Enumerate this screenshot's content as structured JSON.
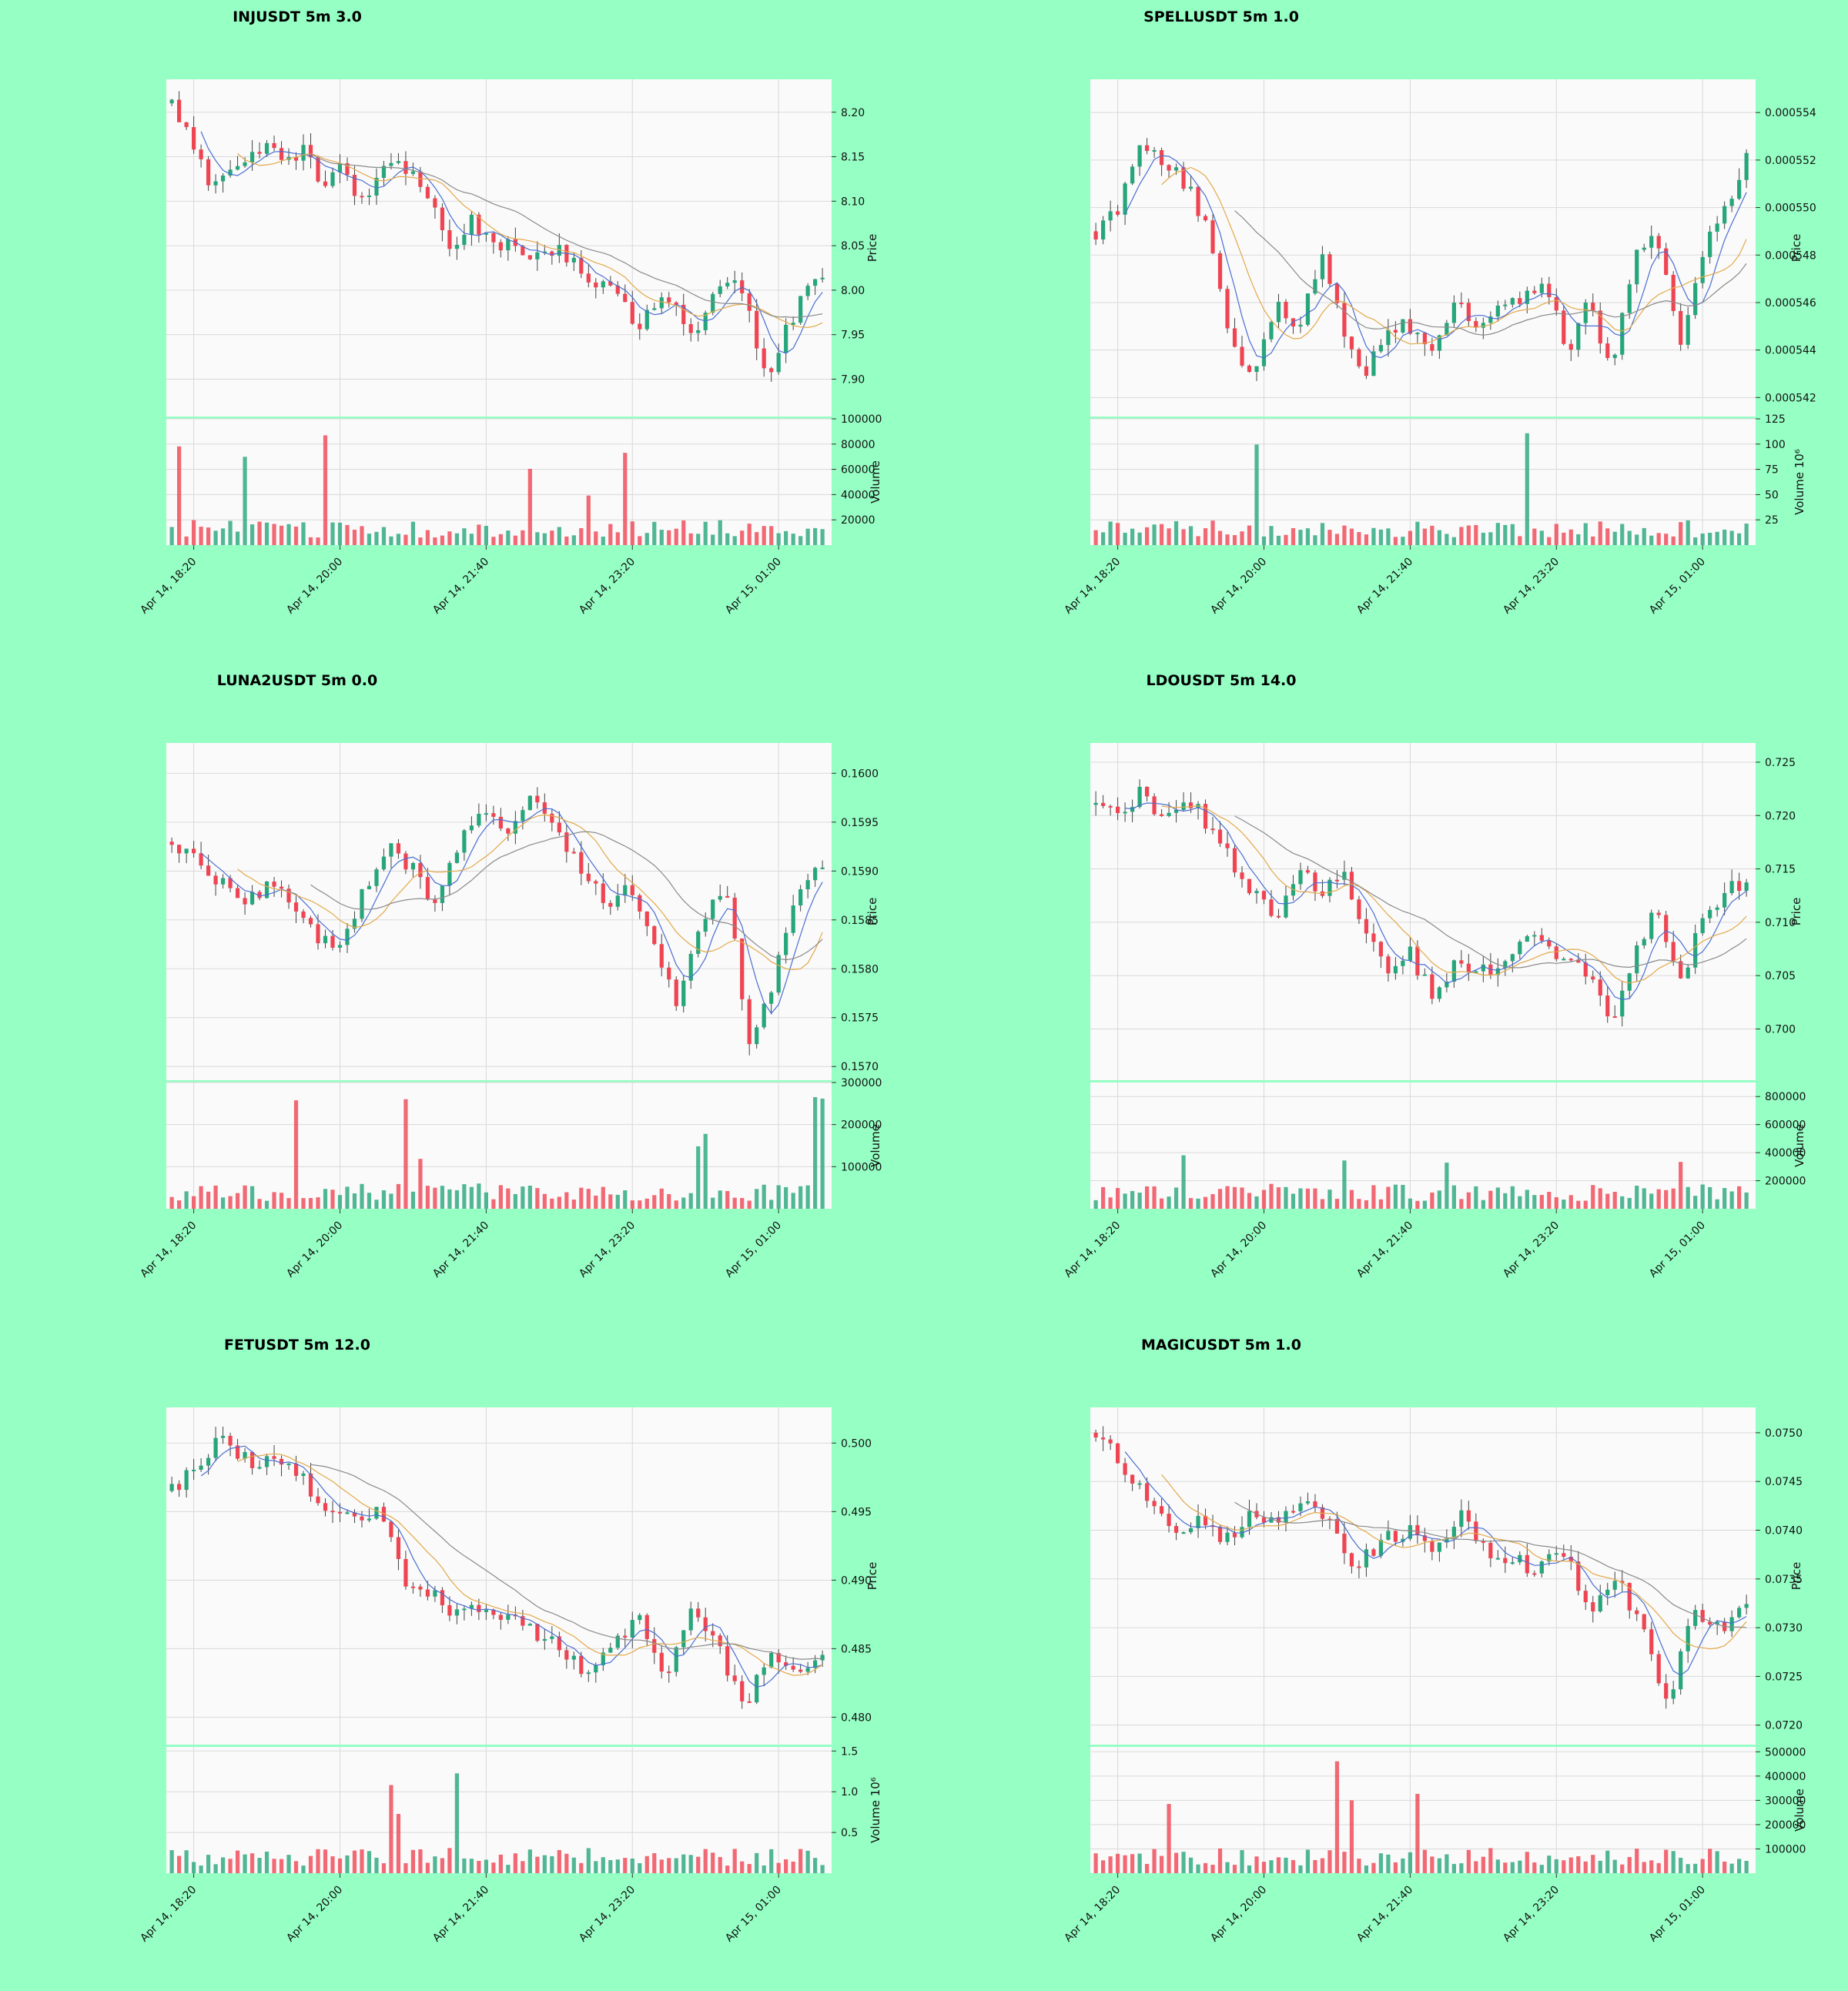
{
  "page": {
    "background": "#95ffc4",
    "panel_background": "#fafafa",
    "up_color": "#26a67a",
    "down_color": "#ef4553"
  },
  "chart_data": [
    {
      "type": "candlestick",
      "title": "INJUSDT 5m 3.0",
      "ylabel": "Price",
      "volume_label": "Volume",
      "ylim": [
        7.858,
        8.237
      ],
      "yticks": [
        8.2,
        8.15,
        8.1,
        8.05,
        8.0,
        7.95,
        7.9
      ],
      "decimals": 2,
      "volume_ylim": [
        0,
        100000
      ],
      "volume_ticks": [
        100000,
        80000,
        60000,
        40000,
        20000
      ],
      "volume_tick_labels": [
        "100000",
        "80000",
        "60000",
        "40000",
        "20000"
      ],
      "xtick_labels": [
        "Apr 14, 18:20",
        "Apr 14, 20:00",
        "Apr 14, 21:40",
        "Apr 14, 23:20",
        "Apr 15, 01:00"
      ],
      "close_path": [
        8.21,
        8.17,
        8.12,
        8.14,
        8.14,
        8.17,
        8.14,
        8.16,
        8.12,
        8.14,
        8.1,
        8.12,
        8.15,
        8.13,
        8.1,
        8.04,
        8.08,
        8.06,
        8.05,
        8.03,
        8.05,
        8.04,
        8.02,
        8.01,
        8.0,
        7.96,
        7.99,
        7.98,
        7.95,
        7.99,
        8.02,
        7.98,
        7.89,
        7.95,
        8.0,
        8.01
      ]
    },
    {
      "type": "candlestick",
      "title": "SPELLUSDT 5m 1.0",
      "ylabel": "Price",
      "volume_label": "Volume  10⁶",
      "ylim": [
        0.0005412,
        0.0005554
      ],
      "yticks": [
        0.000554,
        0.000552,
        0.00055,
        0.000548,
        0.000546,
        0.000544,
        0.000542
      ],
      "decimals": 6,
      "volume_ylim": [
        0,
        125
      ],
      "volume_ticks": [
        125,
        100,
        75,
        50,
        25
      ],
      "volume_tick_labels": [
        "125",
        "100",
        "75",
        "50",
        "25"
      ],
      "xtick_labels": [
        "Apr 14, 18:20",
        "Apr 14, 20:00",
        "Apr 14, 21:40",
        "Apr 14, 23:20",
        "Apr 15, 01:00"
      ],
      "close_path": [
        0.000549,
        0.00055,
        0.000553,
        0.000552,
        0.000551,
        0.000549,
        0.000544,
        0.000543,
        0.000546,
        0.000545,
        0.000548,
        0.000545,
        0.000543,
        0.000545,
        0.000545,
        0.000544,
        0.000546,
        0.000545,
        0.000546,
        0.000546,
        0.000547,
        0.000544,
        0.000546,
        0.000543,
        0.000548,
        0.000549,
        0.000544,
        0.000548,
        0.00055,
        0.000552
      ]
    },
    {
      "type": "candlestick",
      "title": "LUNA2USDT 5m 0.0",
      "ylabel": "Price",
      "volume_label": "Volume",
      "ylim": [
        0.15686,
        0.16031
      ],
      "yticks": [
        0.16,
        0.1595,
        0.159,
        0.1585,
        0.158,
        0.1575,
        0.157
      ],
      "decimals": 4,
      "volume_ylim": [
        0,
        300000
      ],
      "volume_ticks": [
        300000,
        200000,
        100000
      ],
      "volume_tick_labels": [
        "300000",
        "200000",
        "100000"
      ],
      "xtick_labels": [
        "Apr 14, 18:20",
        "Apr 14, 20:00",
        "Apr 14, 21:40",
        "Apr 14, 23:20",
        "Apr 15, 01:00"
      ],
      "close_path": [
        0.1593,
        0.1591,
        0.1589,
        0.1586,
        0.1589,
        0.1586,
        0.1583,
        0.1583,
        0.1588,
        0.1593,
        0.159,
        0.1586,
        0.1594,
        0.1596,
        0.1593,
        0.1598,
        0.1594,
        0.159,
        0.1587,
        0.1588,
        0.1583,
        0.1576,
        0.1585,
        0.1589,
        0.1572,
        0.1579,
        0.1588,
        0.1591
      ]
    },
    {
      "type": "candlestick",
      "title": "LDOUSDT 5m 14.0",
      "ylabel": "Price",
      "volume_label": "Volume",
      "ylim": [
        0.6952,
        0.7268
      ],
      "yticks": [
        0.725,
        0.72,
        0.715,
        0.71,
        0.705,
        0.7
      ],
      "decimals": 3,
      "volume_ylim": [
        0,
        900000
      ],
      "volume_ticks": [
        800000,
        600000,
        400000,
        200000
      ],
      "volume_tick_labels": [
        "800000",
        "600000",
        "400000",
        "200000"
      ],
      "xtick_labels": [
        "Apr 14, 18:20",
        "Apr 14, 20:00",
        "Apr 14, 21:40",
        "Apr 14, 23:20",
        "Apr 15, 01:00"
      ],
      "close_path": [
        0.721,
        0.72,
        0.722,
        0.72,
        0.722,
        0.719,
        0.716,
        0.713,
        0.71,
        0.715,
        0.713,
        0.715,
        0.709,
        0.705,
        0.707,
        0.703,
        0.706,
        0.705,
        0.706,
        0.709,
        0.708,
        0.706,
        0.705,
        0.701,
        0.707,
        0.712,
        0.704,
        0.71,
        0.713,
        0.714
      ]
    },
    {
      "type": "candlestick",
      "title": "FETUSDT 5m 12.0",
      "ylabel": "Price",
      "volume_label": "Volume  10⁶",
      "ylim": [
        0.478,
        0.5026
      ],
      "yticks": [
        0.5,
        0.495,
        0.49,
        0.485,
        0.48
      ],
      "decimals": 3,
      "volume_ylim": [
        0,
        1.55
      ],
      "volume_ticks": [
        1.5,
        1.0,
        0.5
      ],
      "volume_tick_labels": [
        "1.5",
        "1.0",
        "0.5"
      ],
      "xtick_labels": [
        "Apr 14, 18:20",
        "Apr 14, 20:00",
        "Apr 14, 21:40",
        "Apr 14, 23:20",
        "Apr 15, 01:00"
      ],
      "close_path": [
        0.4965,
        0.4985,
        0.5005,
        0.4985,
        0.499,
        0.4975,
        0.495,
        0.4945,
        0.495,
        0.49,
        0.489,
        0.4875,
        0.488,
        0.487,
        0.486,
        0.485,
        0.483,
        0.4855,
        0.487,
        0.4825,
        0.4885,
        0.485,
        0.481,
        0.4845,
        0.4835,
        0.4845
      ]
    },
    {
      "type": "candlestick",
      "title": "MAGICUSDT 5m 1.0",
      "ylabel": "Price",
      "volume_label": "Volume",
      "ylim": [
        0.0718,
        0.07526
      ],
      "yticks": [
        0.075,
        0.0745,
        0.074,
        0.0735,
        0.073,
        0.0725,
        0.072
      ],
      "decimals": 4,
      "volume_ylim": [
        0,
        520000
      ],
      "volume_ticks": [
        500000,
        400000,
        300000,
        200000,
        100000
      ],
      "volume_tick_labels": [
        "500000",
        "400000",
        "300000",
        "200000",
        "100000"
      ],
      "xtick_labels": [
        "Apr 14, 18:20",
        "Apr 14, 20:00",
        "Apr 14, 21:40",
        "Apr 14, 23:20",
        "Apr 15, 01:00"
      ],
      "close_path": [
        0.075,
        0.0747,
        0.0743,
        0.074,
        0.0741,
        0.0739,
        0.0742,
        0.074,
        0.0744,
        0.0741,
        0.0736,
        0.0739,
        0.074,
        0.0738,
        0.0742,
        0.0738,
        0.0737,
        0.0736,
        0.0738,
        0.0731,
        0.0735,
        0.073,
        0.0722,
        0.0732,
        0.073,
        0.0732
      ]
    }
  ]
}
